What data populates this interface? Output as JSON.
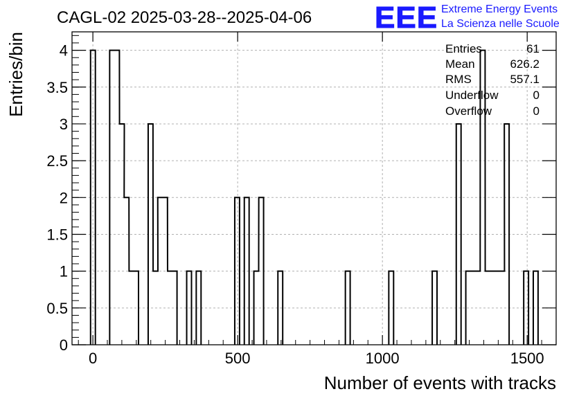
{
  "logo": {
    "mark": "EEE",
    "line1": "Extreme Energy Events",
    "line2": "La Scienza nelle Scuole",
    "color": "#1a1aff"
  },
  "stats": [
    {
      "label": "Entries",
      "value": "61"
    },
    {
      "label": "Mean",
      "value": "626.2"
    },
    {
      "label": "RMS",
      "value": "557.1"
    },
    {
      "label": "Underflow",
      "value": "0"
    },
    {
      "label": "Overflow",
      "value": "0"
    }
  ],
  "chart_data": {
    "type": "bar",
    "subtype": "step-histogram",
    "title": "CAGL-02 2025-03-28--2025-04-06",
    "xlabel": "Number of events with tracks",
    "ylabel": "Entries/bin",
    "xlim": [
      -72,
      1600
    ],
    "ylim": [
      0,
      4.25
    ],
    "bin_width": 16.6,
    "x_ticks": [
      0,
      500,
      1000,
      1500
    ],
    "y_ticks": [
      0,
      0.5,
      1,
      1.5,
      2,
      2.5,
      3,
      3.5,
      4
    ],
    "y_tick_labels": [
      "0",
      "0.5",
      "1",
      "1.5",
      "2",
      "2.5",
      "3",
      "3.5",
      "4"
    ],
    "grid": true,
    "line_color": "#000000",
    "bins": [
      {
        "x": -8,
        "count": 4
      },
      {
        "x": 58,
        "count": 4
      },
      {
        "x": 75,
        "count": 4
      },
      {
        "x": 92,
        "count": 3
      },
      {
        "x": 108,
        "count": 2
      },
      {
        "x": 125,
        "count": 1
      },
      {
        "x": 141,
        "count": 1
      },
      {
        "x": 191,
        "count": 3
      },
      {
        "x": 208,
        "count": 1
      },
      {
        "x": 224,
        "count": 2
      },
      {
        "x": 241,
        "count": 2
      },
      {
        "x": 258,
        "count": 1
      },
      {
        "x": 274,
        "count": 1
      },
      {
        "x": 324,
        "count": 1
      },
      {
        "x": 357,
        "count": 1
      },
      {
        "x": 490,
        "count": 2
      },
      {
        "x": 523,
        "count": 2
      },
      {
        "x": 556,
        "count": 1
      },
      {
        "x": 573,
        "count": 2
      },
      {
        "x": 639,
        "count": 1
      },
      {
        "x": 872,
        "count": 1
      },
      {
        "x": 1022,
        "count": 1
      },
      {
        "x": 1172,
        "count": 1
      },
      {
        "x": 1255,
        "count": 3
      },
      {
        "x": 1288,
        "count": 1
      },
      {
        "x": 1305,
        "count": 1
      },
      {
        "x": 1321,
        "count": 1
      },
      {
        "x": 1338,
        "count": 4
      },
      {
        "x": 1355,
        "count": 1
      },
      {
        "x": 1371,
        "count": 1
      },
      {
        "x": 1388,
        "count": 1
      },
      {
        "x": 1405,
        "count": 1
      },
      {
        "x": 1421,
        "count": 3
      },
      {
        "x": 1488,
        "count": 1
      },
      {
        "x": 1521,
        "count": 1
      }
    ]
  }
}
